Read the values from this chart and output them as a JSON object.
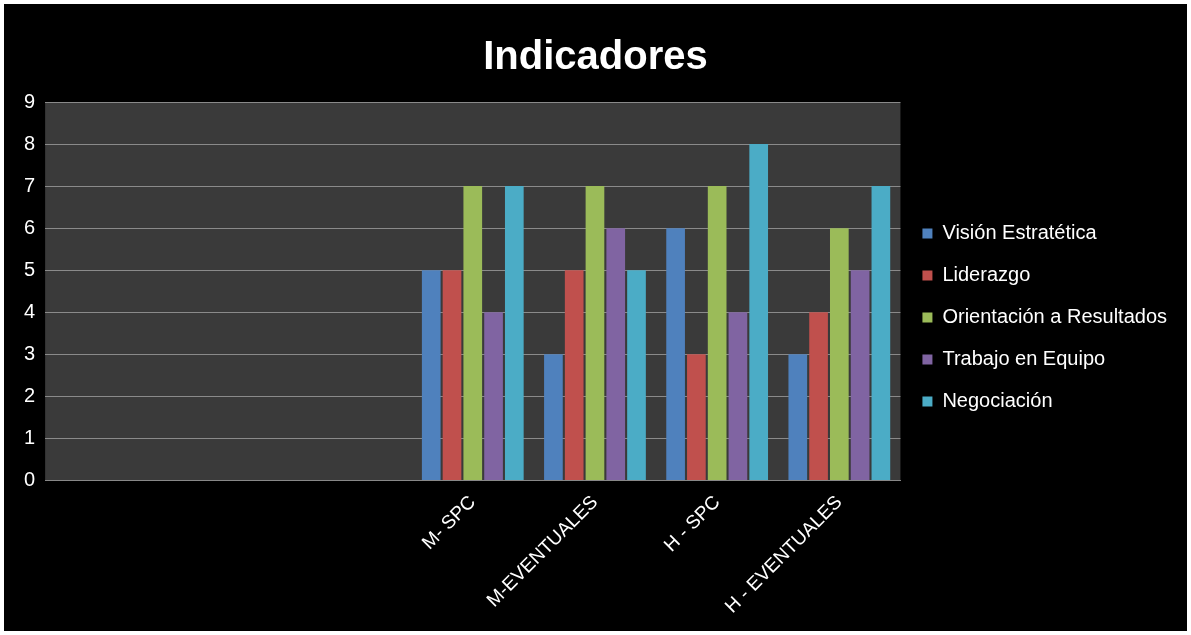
{
  "chart_data": {
    "type": "bar",
    "title": "Indicadores",
    "categories": [
      null,
      null,
      null,
      "M- SPC",
      "M-EVENTUALES",
      "H - SPC",
      "H - EVENTUALES"
    ],
    "series": [
      {
        "name": "Visión Estratética",
        "color": "#4f81bd",
        "values": [
          null,
          null,
          null,
          5,
          3,
          6,
          3
        ]
      },
      {
        "name": "Liderazgo",
        "color": "#c0504d",
        "values": [
          null,
          null,
          null,
          5,
          5,
          3,
          4
        ]
      },
      {
        "name": "Orientación a Resultados",
        "color": "#9bbb59",
        "values": [
          null,
          null,
          null,
          7,
          7,
          7,
          6
        ]
      },
      {
        "name": "Trabajo en Equipo",
        "color": "#8064a2",
        "values": [
          null,
          null,
          null,
          4,
          6,
          4,
          5
        ]
      },
      {
        "name": "Negociación",
        "color": "#4bacc6",
        "values": [
          null,
          null,
          null,
          7,
          5,
          8,
          7
        ]
      }
    ],
    "ylim": [
      0,
      9
    ],
    "yticks": [
      0,
      1,
      2,
      3,
      4,
      5,
      6,
      7,
      8,
      9
    ],
    "grid": "y",
    "legend": "right"
  }
}
